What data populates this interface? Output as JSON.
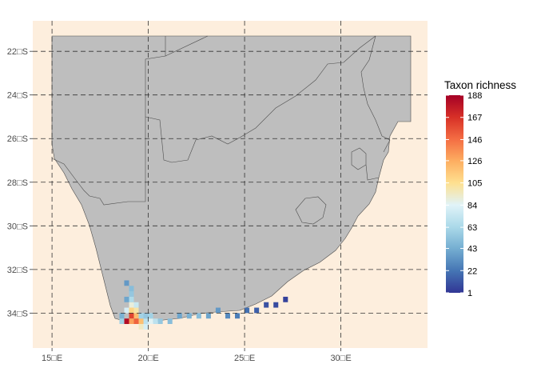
{
  "map": {
    "x_ticks": [
      {
        "value": 15,
        "label": "15□E"
      },
      {
        "value": 20,
        "label": "20□E"
      },
      {
        "value": 25,
        "label": "25□E"
      },
      {
        "value": 30,
        "label": "30□E"
      }
    ],
    "y_ticks": [
      {
        "value": -22,
        "label": "22□S"
      },
      {
        "value": -24,
        "label": "24□S"
      },
      {
        "value": -26,
        "label": "26□S"
      },
      {
        "value": -28,
        "label": "28□S"
      },
      {
        "value": -30,
        "label": "30□S"
      },
      {
        "value": -32,
        "label": "32□S"
      },
      {
        "value": -34,
        "label": "34□S"
      }
    ],
    "lon_range": [
      14.0,
      34.5
    ],
    "lat_range": [
      -35.6,
      -20.6
    ],
    "ocean_color": "#fdeedd",
    "land_color": "#bebebe",
    "grid": true,
    "legend": {
      "title": "Taxon richness",
      "position": "right",
      "min": 1,
      "max": 188,
      "ticks": [
        188,
        167,
        146,
        126,
        105,
        84,
        63,
        43,
        22,
        1
      ],
      "palette": [
        "#313695",
        "#4575b4",
        "#74add1",
        "#abd9e9",
        "#e0f3f8",
        "#fee090",
        "#fdae61",
        "#f46d43",
        "#d73027",
        "#a50026"
      ]
    }
  },
  "chart_data": {
    "type": "heatmap",
    "xlabel": "",
    "ylabel": "",
    "value_name": "Taxon richness",
    "cell_size_deg": 0.25,
    "cells": [
      {
        "lon": 18.75,
        "lat": -34.25,
        "v": 182
      },
      {
        "lon": 19.0,
        "lat": -34.0,
        "v": 160
      },
      {
        "lon": 19.0,
        "lat": -34.25,
        "v": 130
      },
      {
        "lon": 19.25,
        "lat": -34.0,
        "v": 120
      },
      {
        "lon": 19.25,
        "lat": -34.25,
        "v": 150
      },
      {
        "lon": 19.5,
        "lat": -34.25,
        "v": 118
      },
      {
        "lon": 19.5,
        "lat": -34.5,
        "v": 95
      },
      {
        "lon": 19.0,
        "lat": -33.75,
        "v": 110
      },
      {
        "lon": 19.25,
        "lat": -33.75,
        "v": 100
      },
      {
        "lon": 18.75,
        "lat": -33.75,
        "v": 80
      },
      {
        "lon": 19.0,
        "lat": -33.5,
        "v": 90
      },
      {
        "lon": 19.25,
        "lat": -33.5,
        "v": 75
      },
      {
        "lon": 18.5,
        "lat": -34.25,
        "v": 60
      },
      {
        "lon": 18.5,
        "lat": -34.0,
        "v": 45
      },
      {
        "lon": 19.75,
        "lat": -34.25,
        "v": 70
      },
      {
        "lon": 19.75,
        "lat": -34.5,
        "v": 80
      },
      {
        "lon": 20.0,
        "lat": -34.25,
        "v": 85
      },
      {
        "lon": 20.25,
        "lat": -34.25,
        "v": 70
      },
      {
        "lon": 19.0,
        "lat": -33.25,
        "v": 65
      },
      {
        "lon": 19.0,
        "lat": -33.0,
        "v": 55
      },
      {
        "lon": 19.0,
        "lat": -32.75,
        "v": 50
      },
      {
        "lon": 18.75,
        "lat": -33.25,
        "v": 40
      },
      {
        "lon": 18.75,
        "lat": -32.5,
        "v": 35
      },
      {
        "lon": 19.5,
        "lat": -34.0,
        "v": 60
      },
      {
        "lon": 19.75,
        "lat": -34.0,
        "v": 55
      },
      {
        "lon": 20.0,
        "lat": -34.0,
        "v": 60
      },
      {
        "lon": 20.5,
        "lat": -34.25,
        "v": 55
      },
      {
        "lon": 21.0,
        "lat": -34.25,
        "v": 50
      },
      {
        "lon": 21.5,
        "lat": -34.0,
        "v": 40
      },
      {
        "lon": 22.0,
        "lat": -34.0,
        "v": 45
      },
      {
        "lon": 22.5,
        "lat": -34.0,
        "v": 50
      },
      {
        "lon": 23.0,
        "lat": -34.0,
        "v": 40
      },
      {
        "lon": 23.5,
        "lat": -33.75,
        "v": 35
      },
      {
        "lon": 24.0,
        "lat": -34.0,
        "v": 30
      },
      {
        "lon": 24.5,
        "lat": -34.0,
        "v": 25
      },
      {
        "lon": 25.0,
        "lat": -33.75,
        "v": 20
      },
      {
        "lon": 25.5,
        "lat": -33.75,
        "v": 15
      },
      {
        "lon": 26.0,
        "lat": -33.5,
        "v": 10
      },
      {
        "lon": 26.5,
        "lat": -33.5,
        "v": 8
      },
      {
        "lon": 27.0,
        "lat": -33.25,
        "v": 5
      }
    ]
  }
}
